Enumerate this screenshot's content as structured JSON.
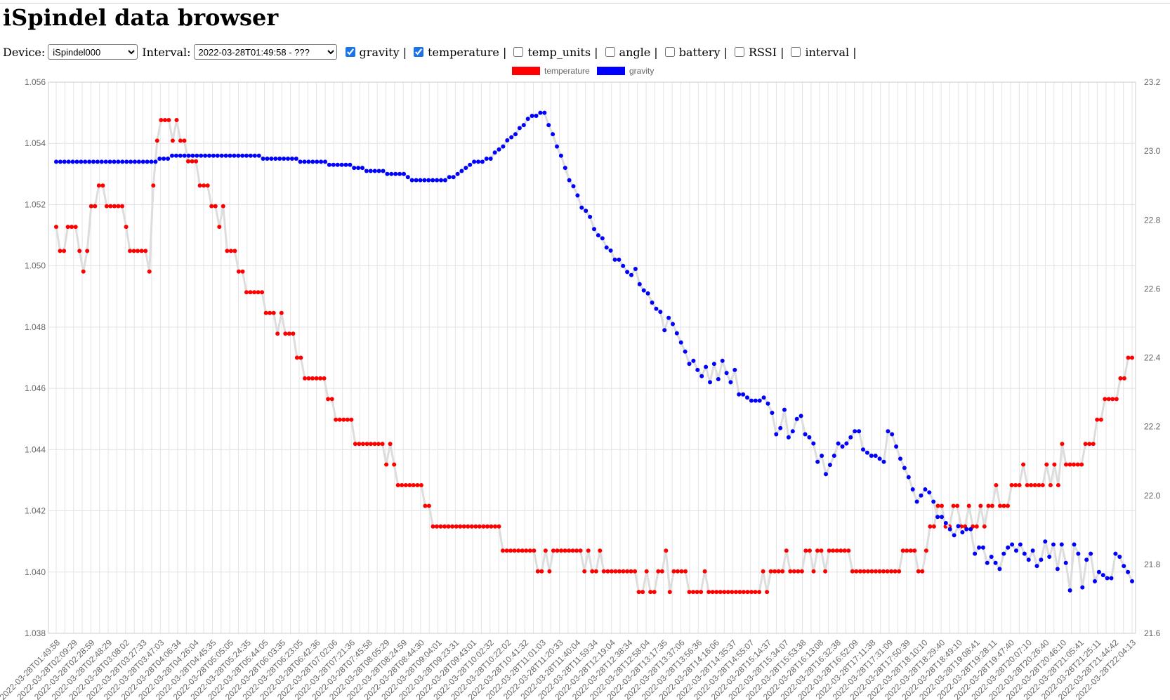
{
  "page": {
    "title": "iSpindel data browser"
  },
  "controls": {
    "device_label": "Device:",
    "device_value": "iSpindel000",
    "interval_label": "Interval:",
    "interval_value": "2022-03-28T01:49:58 - ???",
    "checkboxes": [
      {
        "label": "gravity |",
        "checked": true
      },
      {
        "label": "temperature |",
        "checked": true
      },
      {
        "label": "temp_units |",
        "checked": false
      },
      {
        "label": "angle |",
        "checked": false
      },
      {
        "label": "battery |",
        "checked": false
      },
      {
        "label": "RSSI |",
        "checked": false
      },
      {
        "label": "interval |",
        "checked": false
      }
    ]
  },
  "chart_data": {
    "type": "line",
    "legend": [
      {
        "name": "temperature",
        "color": "#ff0000"
      },
      {
        "name": "gravity",
        "color": "#0000ff"
      }
    ],
    "legend_position": "top-center",
    "grid": true,
    "line_color": "#dddddd",
    "y_left": {
      "min": 1.038,
      "max": 1.056,
      "ticks": [
        "1.038",
        "1.040",
        "1.042",
        "1.044",
        "1.046",
        "1.048",
        "1.050",
        "1.052",
        "1.054",
        "1.056"
      ]
    },
    "y_right": {
      "min": 21.6,
      "max": 23.2,
      "ticks": [
        "21.6",
        "21.8",
        "22.0",
        "22.2",
        "22.4",
        "22.6",
        "22.8",
        "23.0",
        "23.2"
      ]
    },
    "x_tick_labels": [
      "2022-03-28T01:49:58",
      "2022-03-28T02:09:29",
      "2022-03-28T02:28:59",
      "2022-03-28T02:48:29",
      "2022-03-28T03:08:02",
      "2022-03-28T03:27:33",
      "2022-03-28T03:47:03",
      "2022-03-28T04:06:34",
      "2022-03-28T04:26:04",
      "2022-03-28T04:45:35",
      "2022-03-28T05:05:05",
      "2022-03-28T05:24:35",
      "2022-03-28T05:44:05",
      "2022-03-28T06:03:35",
      "2022-03-28T06:23:05",
      "2022-03-28T06:42:36",
      "2022-03-28T07:02:06",
      "2022-03-28T07:21:36",
      "2022-03-28T07:45:58",
      "2022-03-28T08:05:29",
      "2022-03-28T08:24:59",
      "2022-03-28T08:44:30",
      "2022-03-28T09:04:01",
      "2022-03-28T09:23:31",
      "2022-03-28T09:43:01",
      "2022-03-28T10:02:32",
      "2022-03-28T10:22:02",
      "2022-03-28T10:41:32",
      "2022-03-28T11:01:03",
      "2022-03-28T11:20:33",
      "2022-03-28T11:40:04",
      "2022-03-28T11:59:34",
      "2022-03-28T12:19:04",
      "2022-03-28T12:38:34",
      "2022-03-28T12:58:04",
      "2022-03-28T13:17:35",
      "2022-03-28T13:37:06",
      "2022-03-28T13:56:36",
      "2022-03-28T14:16:06",
      "2022-03-28T14:35:37",
      "2022-03-28T14:55:07",
      "2022-03-28T15:14:37",
      "2022-03-28T15:34:07",
      "2022-03-28T15:53:38",
      "2022-03-28T16:13:08",
      "2022-03-28T16:32:38",
      "2022-03-28T16:52:09",
      "2022-03-28T17:11:38",
      "2022-03-28T17:31:09",
      "2022-03-28T17:50:39",
      "2022-03-28T18:10:10",
      "2022-03-28T18:29:40",
      "2022-03-28T18:49:10",
      "2022-03-28T19:08:41",
      "2022-03-28T19:28:11",
      "2022-03-28T19:47:40",
      "2022-03-28T20:07:10",
      "2022-03-28T20:26:40",
      "2022-03-28T20:46:10",
      "2022-03-28T21:05:41",
      "2022-03-28T21:25:11",
      "2022-03-28T21:44:42",
      "2022-03-28T22:04:13"
    ],
    "series": [
      {
        "name": "temperature",
        "axis": "right",
        "color": "#ff0000",
        "values": [
          22.78,
          22.71,
          22.71,
          22.78,
          22.78,
          22.78,
          22.71,
          22.65,
          22.71,
          22.84,
          22.84,
          22.9,
          22.9,
          22.84,
          22.84,
          22.84,
          22.84,
          22.84,
          22.78,
          22.71,
          22.71,
          22.71,
          22.71,
          22.71,
          22.65,
          22.9,
          23.03,
          23.09,
          23.09,
          23.09,
          23.03,
          23.09,
          23.03,
          23.03,
          22.97,
          22.97,
          22.97,
          22.9,
          22.9,
          22.9,
          22.84,
          22.84,
          22.78,
          22.84,
          22.71,
          22.71,
          22.71,
          22.65,
          22.65,
          22.59,
          22.59,
          22.59,
          22.59,
          22.59,
          22.53,
          22.53,
          22.53,
          22.47,
          22.53,
          22.47,
          22.47,
          22.47,
          22.4,
          22.4,
          22.34,
          22.34,
          22.34,
          22.34,
          22.34,
          22.34,
          22.28,
          22.28,
          22.22,
          22.22,
          22.22,
          22.22,
          22.22,
          22.15,
          22.15,
          22.15,
          22.15,
          22.15,
          22.15,
          22.15,
          22.15,
          22.09,
          22.15,
          22.09,
          22.03,
          22.03,
          22.03,
          22.03,
          22.03,
          22.03,
          22.03,
          21.97,
          21.97,
          21.91,
          21.91,
          21.91,
          21.91,
          21.91,
          21.91,
          21.91,
          21.91,
          21.91,
          21.91,
          21.91,
          21.91,
          21.91,
          21.91,
          21.91,
          21.91,
          21.91,
          21.91,
          21.84,
          21.84,
          21.84,
          21.84,
          21.84,
          21.84,
          21.84,
          21.84,
          21.84,
          21.78,
          21.78,
          21.84,
          21.78,
          21.84,
          21.84,
          21.84,
          21.84,
          21.84,
          21.84,
          21.84,
          21.84,
          21.78,
          21.84,
          21.78,
          21.78,
          21.84,
          21.78,
          21.78,
          21.78,
          21.78,
          21.78,
          21.78,
          21.78,
          21.78,
          21.78,
          21.72,
          21.72,
          21.78,
          21.72,
          21.72,
          21.78,
          21.78,
          21.84,
          21.72,
          21.78,
          21.78,
          21.78,
          21.78,
          21.72,
          21.72,
          21.72,
          21.72,
          21.78,
          21.72,
          21.72,
          21.72,
          21.72,
          21.72,
          21.72,
          21.72,
          21.72,
          21.72,
          21.72,
          21.72,
          21.72,
          21.72,
          21.72,
          21.78,
          21.72,
          21.78,
          21.78,
          21.78,
          21.78,
          21.84,
          21.78,
          21.78,
          21.78,
          21.78,
          21.84,
          21.84,
          21.78,
          21.84,
          21.84,
          21.78,
          21.84,
          21.84,
          21.84,
          21.84,
          21.84,
          21.84,
          21.78,
          21.78,
          21.78,
          21.78,
          21.78,
          21.78,
          21.78,
          21.78,
          21.78,
          21.78,
          21.78,
          21.78,
          21.78,
          21.84,
          21.84,
          21.84,
          21.84,
          21.78,
          21.78,
          21.84,
          21.91,
          21.91,
          21.97,
          21.97,
          21.91,
          21.91,
          21.97,
          21.97,
          21.91,
          21.91,
          21.97,
          21.91,
          21.91,
          21.97,
          21.91,
          21.97,
          21.97,
          22.03,
          21.97,
          21.97,
          21.97,
          22.03,
          22.03,
          22.03,
          22.09,
          22.03,
          22.03,
          22.03,
          22.03,
          22.03,
          22.09,
          22.03,
          22.09,
          22.03,
          22.15,
          22.09,
          22.09,
          22.09,
          22.09,
          22.09,
          22.15,
          22.15,
          22.15,
          22.22,
          22.22,
          22.28,
          22.28,
          22.28,
          22.28,
          22.34,
          22.34,
          22.4,
          22.4
        ]
      },
      {
        "name": "gravity",
        "axis": "left",
        "color": "#0000ff",
        "values": [
          1.0534,
          1.0534,
          1.0534,
          1.0534,
          1.0534,
          1.0534,
          1.0534,
          1.0534,
          1.0534,
          1.0534,
          1.0534,
          1.0534,
          1.0534,
          1.0534,
          1.0534,
          1.0534,
          1.0534,
          1.0534,
          1.0534,
          1.0534,
          1.0534,
          1.0534,
          1.0534,
          1.0534,
          1.0534,
          1.0535,
          1.0535,
          1.0535,
          1.0536,
          1.0536,
          1.0536,
          1.0536,
          1.0536,
          1.0536,
          1.0536,
          1.0536,
          1.0536,
          1.0536,
          1.0536,
          1.0536,
          1.0536,
          1.0536,
          1.0536,
          1.0536,
          1.0536,
          1.0536,
          1.0536,
          1.0536,
          1.0536,
          1.0536,
          1.0535,
          1.0535,
          1.0535,
          1.0535,
          1.0535,
          1.0535,
          1.0535,
          1.0535,
          1.0535,
          1.0534,
          1.0534,
          1.0534,
          1.0534,
          1.0534,
          1.0534,
          1.0534,
          1.0533,
          1.0533,
          1.0533,
          1.0533,
          1.0533,
          1.0533,
          1.0532,
          1.0532,
          1.0532,
          1.0531,
          1.0531,
          1.0531,
          1.0531,
          1.0531,
          1.053,
          1.053,
          1.053,
          1.053,
          1.053,
          1.0529,
          1.0528,
          1.0528,
          1.0528,
          1.0528,
          1.0528,
          1.0528,
          1.0528,
          1.0528,
          1.0528,
          1.0529,
          1.0529,
          1.053,
          1.0531,
          1.0532,
          1.0533,
          1.0534,
          1.0534,
          1.0534,
          1.0535,
          1.0535,
          1.0537,
          1.0538,
          1.0539,
          1.0541,
          1.0542,
          1.0543,
          1.0545,
          1.0546,
          1.0548,
          1.0549,
          1.0549,
          1.055,
          1.055,
          1.0546,
          1.0543,
          1.0539,
          1.0536,
          1.0532,
          1.0528,
          1.0526,
          1.0523,
          1.0519,
          1.0518,
          1.0516,
          1.0512,
          1.051,
          1.0509,
          1.0506,
          1.0505,
          1.0502,
          1.0502,
          1.05,
          1.0498,
          1.0497,
          1.0499,
          1.0494,
          1.0492,
          1.0491,
          1.0488,
          1.0486,
          1.0485,
          1.0479,
          1.0483,
          1.0481,
          1.0478,
          1.0475,
          1.0472,
          1.0468,
          1.0469,
          1.0466,
          1.0464,
          1.0467,
          1.0462,
          1.0468,
          1.0463,
          1.0469,
          1.0465,
          1.0462,
          1.0466,
          1.0458,
          1.0458,
          1.0457,
          1.0456,
          1.0456,
          1.0456,
          1.0457,
          1.0455,
          1.0452,
          1.0445,
          1.0447,
          1.0453,
          1.0444,
          1.0446,
          1.045,
          1.0451,
          1.0445,
          1.0444,
          1.0442,
          1.0436,
          1.0438,
          1.0432,
          1.0435,
          1.0438,
          1.0442,
          1.0441,
          1.0442,
          1.0444,
          1.0446,
          1.0446,
          1.044,
          1.0439,
          1.0438,
          1.0438,
          1.0437,
          1.0436,
          1.0446,
          1.0445,
          1.0441,
          1.0437,
          1.0434,
          1.0431,
          1.0427,
          1.0423,
          1.0425,
          1.0427,
          1.0426,
          1.0423,
          1.0418,
          1.0418,
          1.0416,
          1.0414,
          1.0412,
          1.0415,
          1.0413,
          1.0414,
          1.0414,
          1.0406,
          1.0408,
          1.0408,
          1.0403,
          1.0405,
          1.0403,
          1.0401,
          1.0406,
          1.0408,
          1.0409,
          1.0407,
          1.0409,
          1.0406,
          1.0404,
          1.0407,
          1.0402,
          1.0404,
          1.041,
          1.0405,
          1.0409,
          1.0401,
          1.0409,
          1.0403,
          1.0394,
          1.0409,
          1.0406,
          1.0395,
          1.0404,
          1.0406,
          1.0397,
          1.04,
          1.0399,
          1.0398,
          1.0398,
          1.0406,
          1.0405,
          1.0402,
          1.04,
          1.0397
        ]
      }
    ]
  }
}
